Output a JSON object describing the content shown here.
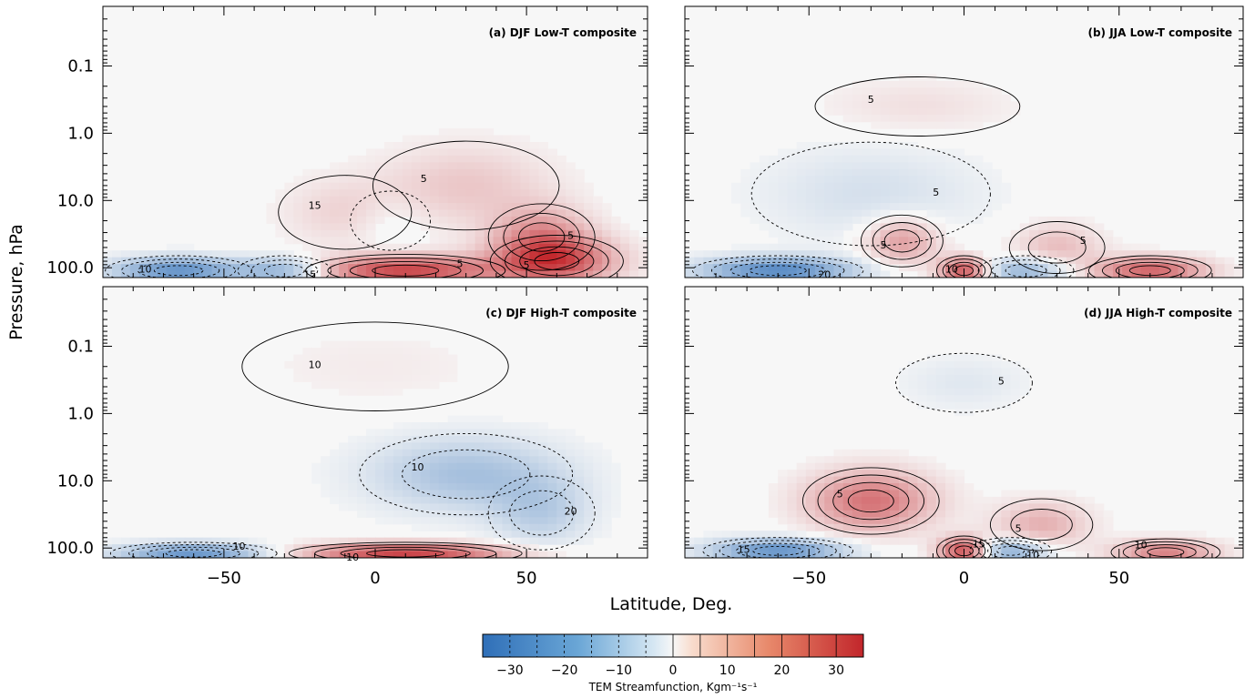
{
  "figure": {
    "ylabel": "Pressure, hPa",
    "xlabel": "Latitude, Deg.",
    "colorbar": {
      "label": "TEM Streamfunction, Kgm⁻¹s⁻¹",
      "min": -35,
      "max": 35,
      "ticks": [
        -30,
        -20,
        -10,
        0,
        10,
        20,
        30
      ],
      "tick_labels": [
        "−30",
        "−20",
        "−10",
        "0",
        "10",
        "20",
        "30"
      ],
      "negative_color": "#3b7fc4",
      "zero_color": "#f7f7f7",
      "positive_color": "#c9292c"
    }
  },
  "chart_data": [
    {
      "type": "heatmap",
      "title": "(a) DJF Low-T composite",
      "ylim": [
        0.013,
        140
      ],
      "yscale": "log",
      "y_ticks": [
        0.1,
        1.0,
        10.0,
        100.0
      ],
      "y_tick_labels": [
        "0.1",
        "1.0",
        "10.0",
        "100.0"
      ],
      "xlim": [
        -90,
        90
      ],
      "x_ticks": [
        -50,
        0,
        50
      ],
      "x_tick_labels": [
        "−50",
        "0",
        "50"
      ],
      "contour_labels": [
        "5",
        "5",
        "5",
        "5",
        "10",
        "15",
        "15"
      ],
      "blobs": [
        {
          "lat": 30,
          "p": 6,
          "v": 8,
          "wl": 28,
          "wp": 0.6
        },
        {
          "lat": 55,
          "p": 35,
          "v": 16,
          "wl": 16,
          "wp": 0.45
        },
        {
          "lat": 60,
          "p": 80,
          "v": 25,
          "wl": 20,
          "wp": 0.35
        },
        {
          "lat": 10,
          "p": 110,
          "v": 30,
          "wl": 30,
          "wp": 0.22
        },
        {
          "lat": -65,
          "p": 110,
          "v": -26,
          "wl": 22,
          "wp": 0.2
        },
        {
          "lat": -30,
          "p": 110,
          "v": -18,
          "wl": 14,
          "wp": 0.2
        },
        {
          "lat": -10,
          "p": 15,
          "v": 6,
          "wl": 20,
          "wp": 0.5
        },
        {
          "lat": 5,
          "p": 20,
          "v": -4,
          "wl": 12,
          "wp": 0.4
        }
      ]
    },
    {
      "type": "heatmap",
      "title": "(b) JJA Low-T composite",
      "ylim": [
        0.013,
        140
      ],
      "yscale": "log",
      "y_ticks": [
        0.1,
        1.0,
        10.0,
        100.0
      ],
      "y_tick_labels": [
        "0.1",
        "1.0",
        "10.0",
        "100.0"
      ],
      "xlim": [
        -90,
        90
      ],
      "x_ticks": [
        -50,
        0,
        50
      ],
      "x_tick_labels": [
        "−50",
        "0",
        "50"
      ],
      "contour_labels": [
        "5",
        "5",
        "5",
        "5",
        "10",
        "20"
      ],
      "blobs": [
        {
          "lat": -15,
          "p": 0.4,
          "v": 4,
          "wl": 30,
          "wp": 0.4
        },
        {
          "lat": -30,
          "p": 8,
          "v": -6,
          "wl": 35,
          "wp": 0.7
        },
        {
          "lat": -20,
          "p": 40,
          "v": 16,
          "wl": 12,
          "wp": 0.35
        },
        {
          "lat": 30,
          "p": 50,
          "v": 10,
          "wl": 14,
          "wp": 0.35
        },
        {
          "lat": 0,
          "p": 110,
          "v": 28,
          "wl": 8,
          "wp": 0.2
        },
        {
          "lat": -60,
          "p": 110,
          "v": -28,
          "wl": 25,
          "wp": 0.2
        },
        {
          "lat": 20,
          "p": 110,
          "v": -18,
          "wl": 14,
          "wp": 0.2
        },
        {
          "lat": 60,
          "p": 110,
          "v": 25,
          "wl": 18,
          "wp": 0.2
        }
      ]
    },
    {
      "type": "heatmap",
      "title": "(c) DJF High-T composite",
      "ylim": [
        0.013,
        140
      ],
      "yscale": "log",
      "y_ticks": [
        0.1,
        1.0,
        10.0,
        100.0
      ],
      "y_tick_labels": [
        "0.1",
        "1.0",
        "10.0",
        "100.0"
      ],
      "xlim": [
        -90,
        90
      ],
      "x_ticks": [
        -50,
        0,
        50
      ],
      "x_tick_labels": [
        "−50",
        "0",
        "50"
      ],
      "contour_labels": [
        "10",
        "20",
        "10",
        "10",
        "10"
      ],
      "blobs": [
        {
          "lat": 30,
          "p": 8,
          "v": -14,
          "wl": 32,
          "wp": 0.55
        },
        {
          "lat": 55,
          "p": 30,
          "v": -10,
          "wl": 16,
          "wp": 0.5
        },
        {
          "lat": 10,
          "p": 120,
          "v": 30,
          "wl": 35,
          "wp": 0.15
        },
        {
          "lat": -60,
          "p": 120,
          "v": -25,
          "wl": 25,
          "wp": 0.15
        },
        {
          "lat": 0,
          "p": 0.2,
          "v": 2,
          "wl": 40,
          "wp": 0.6
        }
      ]
    },
    {
      "type": "heatmap",
      "title": "(d) JJA High-T composite",
      "ylim": [
        0.013,
        140
      ],
      "yscale": "log",
      "y_ticks": [
        0.1,
        1.0,
        10.0,
        100.0
      ],
      "y_tick_labels": [
        "0.1",
        "1.0",
        "10.0",
        "100.0"
      ],
      "xlim": [
        -90,
        90
      ],
      "x_ticks": [
        -50,
        0,
        50
      ],
      "x_tick_labels": [
        "−50",
        "0",
        "50"
      ],
      "contour_labels": [
        "5",
        "5",
        "5",
        "15",
        "15",
        "10",
        "10"
      ],
      "blobs": [
        {
          "lat": -30,
          "p": 20,
          "v": 22,
          "wl": 20,
          "wp": 0.45
        },
        {
          "lat": 0,
          "p": 0.35,
          "v": -4,
          "wl": 20,
          "wp": 0.4
        },
        {
          "lat": 25,
          "p": 45,
          "v": 12,
          "wl": 15,
          "wp": 0.35
        },
        {
          "lat": 0,
          "p": 110,
          "v": 30,
          "wl": 8,
          "wp": 0.2
        },
        {
          "lat": -60,
          "p": 110,
          "v": -26,
          "wl": 22,
          "wp": 0.18
        },
        {
          "lat": 15,
          "p": 110,
          "v": -20,
          "wl": 12,
          "wp": 0.18
        },
        {
          "lat": 65,
          "p": 115,
          "v": 20,
          "wl": 16,
          "wp": 0.18
        }
      ]
    }
  ]
}
